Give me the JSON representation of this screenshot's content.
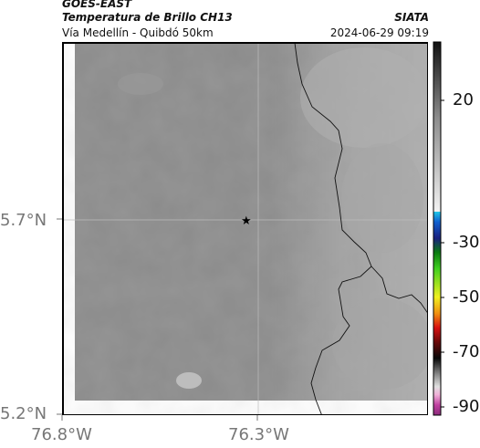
{
  "header": {
    "satellite": "GOES-EAST",
    "product": "Temperatura de Brillo CH13",
    "region": "Vía Medellín - Quibdó 50km",
    "organization": "SIATA",
    "datetime": "2024-06-29 09:19"
  },
  "axes": {
    "lat_ticks": [
      "5.7°N",
      "5.2°N"
    ],
    "lon_ticks": [
      "76.8°W",
      "76.3°W"
    ]
  },
  "colorbar": {
    "ticks": [
      "20",
      "-30",
      "-50",
      "-70",
      "-90"
    ]
  },
  "colors": {
    "map_base": "#8a8a8a",
    "frame": "#000000"
  }
}
